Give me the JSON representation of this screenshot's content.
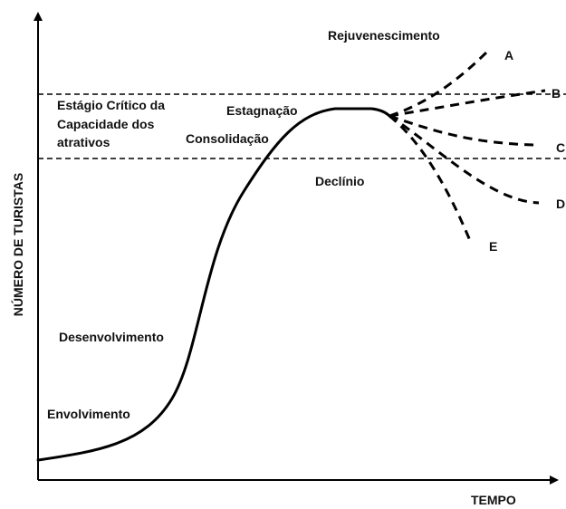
{
  "axes": {
    "y_label": "NÚMERO DE TURISTAS",
    "x_label": "TEMPO"
  },
  "critical_zone": {
    "lines": [
      "Estágio Crítico da",
      "Capacidade dos",
      "atrativos"
    ]
  },
  "stages": {
    "exploration": "Envolvimento",
    "development": "Desenvolvimento",
    "consolidation": "Consolidação",
    "stagnation": "Estagnação",
    "rejuvenation": "Rejuvenescimento",
    "decline": "Declínio"
  },
  "branches": [
    "A",
    "B",
    "C",
    "D",
    "E"
  ]
}
